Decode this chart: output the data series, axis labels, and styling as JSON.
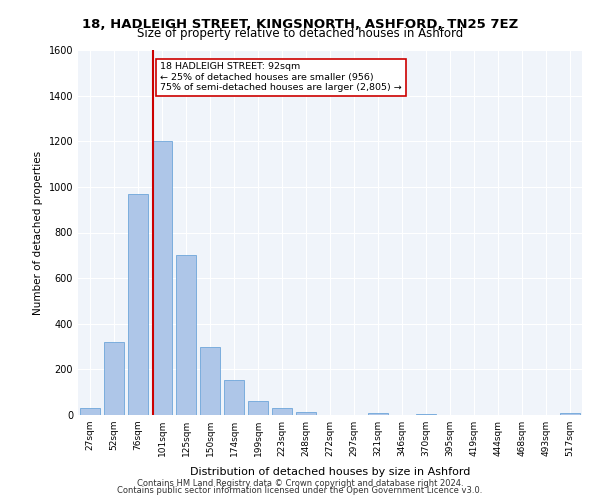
{
  "title1": "18, HADLEIGH STREET, KINGSNORTH, ASHFORD, TN25 7EZ",
  "title2": "Size of property relative to detached houses in Ashford",
  "xlabel": "Distribution of detached houses by size in Ashford",
  "ylabel": "Number of detached properties",
  "categories": [
    "27sqm",
    "52sqm",
    "76sqm",
    "101sqm",
    "125sqm",
    "150sqm",
    "174sqm",
    "199sqm",
    "223sqm",
    "248sqm",
    "272sqm",
    "297sqm",
    "321sqm",
    "346sqm",
    "370sqm",
    "395sqm",
    "419sqm",
    "444sqm",
    "468sqm",
    "493sqm",
    "517sqm"
  ],
  "values": [
    30,
    320,
    970,
    1200,
    700,
    300,
    155,
    60,
    30,
    15,
    0,
    0,
    10,
    0,
    5,
    0,
    0,
    0,
    0,
    0,
    10
  ],
  "bar_color": "#aec6e8",
  "bar_edge_color": "#5b9bd5",
  "property_line_x": 2.5,
  "annotation_text": "18 HADLEIGH STREET: 92sqm\n← 25% of detached houses are smaller (956)\n75% of semi-detached houses are larger (2,805) →",
  "annotation_box_color": "#ffffff",
  "annotation_box_edge": "#cc0000",
  "vline_color": "#cc0000",
  "background_color": "#f0f4fa",
  "plot_bg": "#f0f4fa",
  "footer1": "Contains HM Land Registry data © Crown copyright and database right 2024.",
  "footer2": "Contains public sector information licensed under the Open Government Licence v3.0.",
  "ylim": [
    0,
    1600
  ],
  "yticks": [
    0,
    200,
    400,
    600,
    800,
    1000,
    1200,
    1400,
    1600
  ]
}
